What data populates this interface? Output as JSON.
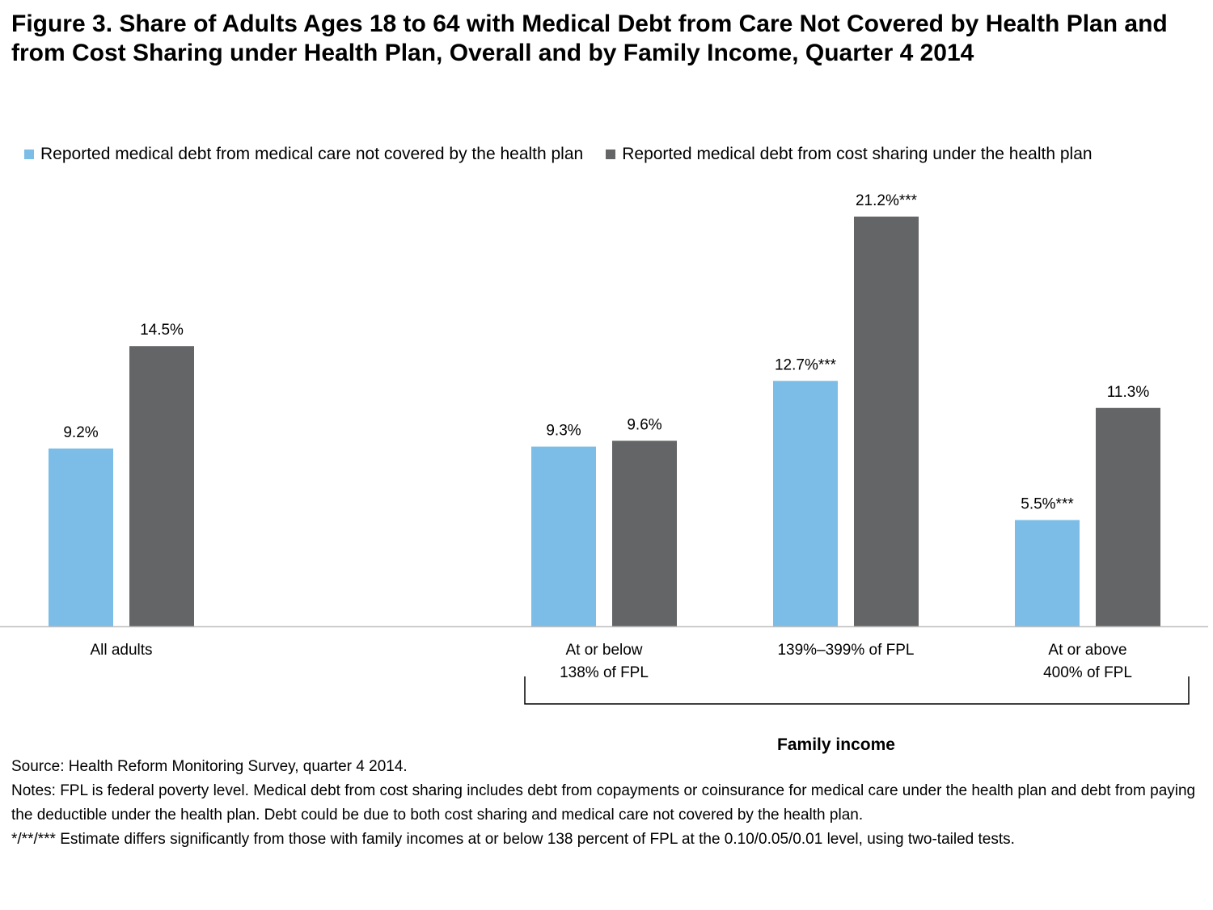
{
  "title": "Figure 3. Share of Adults Ages 18 to 64 with Medical Debt from Care Not Covered by Health Plan and from Cost Sharing under Health Plan, Overall and by Family Income, Quarter 4 2014",
  "colors": {
    "light": "#7bbde6",
    "dark": "#646567"
  },
  "legend": [
    {
      "label": "Reported medical debt from medical care not covered by the health plan",
      "color": "#7bbde6"
    },
    {
      "label": "Reported medical debt from cost sharing under the health plan",
      "color": "#646567"
    }
  ],
  "chart_data": {
    "type": "bar",
    "categories": [
      [
        "All adults"
      ],
      [
        "At or below",
        "138% of FPL"
      ],
      [
        "139%–399% of FPL"
      ],
      [
        "At or above",
        "400% of FPL"
      ]
    ],
    "series": [
      {
        "name": "Reported medical debt from medical care not covered by the health plan",
        "values": [
          9.2,
          9.3,
          12.7,
          5.5
        ],
        "labels": [
          "9.2%",
          "9.3%",
          "12.7%***",
          "5.5%***"
        ]
      },
      {
        "name": "Reported medical debt from cost sharing under the health plan",
        "values": [
          14.5,
          9.6,
          21.2,
          11.3
        ],
        "labels": [
          "14.5%",
          "9.6%",
          "21.2%***",
          "11.3%"
        ]
      }
    ],
    "ylim": [
      0,
      21.2
    ],
    "grid": false,
    "legend_position": "top",
    "bracket_label": "Family income"
  },
  "footer": {
    "source": "Source: Health Reform Monitoring Survey, quarter 4 2014.",
    "notes": "Notes: FPL is federal poverty level.  Medical debt from cost sharing includes debt from copayments or coinsurance for medical care under the health plan and debt from paying the deductible under the health plan. Debt could be due to both cost sharing and medical care not covered by the health plan.",
    "significance": "*/**/***  Estimate differs significantly from those with family incomes at or below 138 percent of FPL at the 0.10/0.05/0.01 level, using two-tailed tests."
  }
}
